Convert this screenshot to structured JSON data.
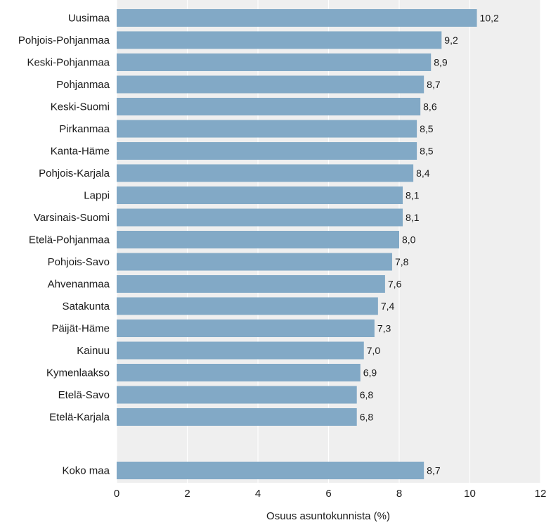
{
  "chart_data": {
    "type": "bar",
    "orientation": "horizontal",
    "title": "",
    "xlabel": "Osuus asuntokunnista (%)",
    "ylabel": "",
    "xlim": [
      0,
      12
    ],
    "xticks": [
      0,
      2,
      4,
      6,
      8,
      10,
      12
    ],
    "grid": true,
    "legend": "none",
    "colors": {
      "bar": "#82a9c6",
      "plot_background": "#efefef",
      "grid": "#ffffff"
    },
    "categories": [
      "Uusimaa",
      "Pohjois-Pohjanmaa",
      "Keski-Pohjanmaa",
      "Pohjanmaa",
      "Keski-Suomi",
      "Pirkanmaa",
      "Kanta-Häme",
      "Pohjois-Karjala",
      "Lappi",
      "Varsinais-Suomi",
      "Etelä-Pohjanmaa",
      "Pohjois-Savo",
      "Ahvenanmaa",
      "Satakunta",
      "Päijät-Häme",
      "Kainuu",
      "Kymenlaakso",
      "Etelä-Savo",
      "Etelä-Karjala"
    ],
    "values": [
      10.2,
      9.2,
      8.9,
      8.7,
      8.6,
      8.5,
      8.5,
      8.4,
      8.1,
      8.1,
      8.0,
      7.8,
      7.6,
      7.4,
      7.3,
      7.0,
      6.9,
      6.8,
      6.8
    ],
    "value_labels": [
      "10,2",
      "9,2",
      "8,9",
      "8,7",
      "8,6",
      "8,5",
      "8,5",
      "8,4",
      "8,1",
      "8,1",
      "8,0",
      "7,8",
      "7,6",
      "7,4",
      "7,3",
      "7,0",
      "6,9",
      "6,8",
      "6,8"
    ],
    "total": {
      "category": "Koko maa",
      "value": 8.7,
      "value_label": "8,7"
    }
  }
}
